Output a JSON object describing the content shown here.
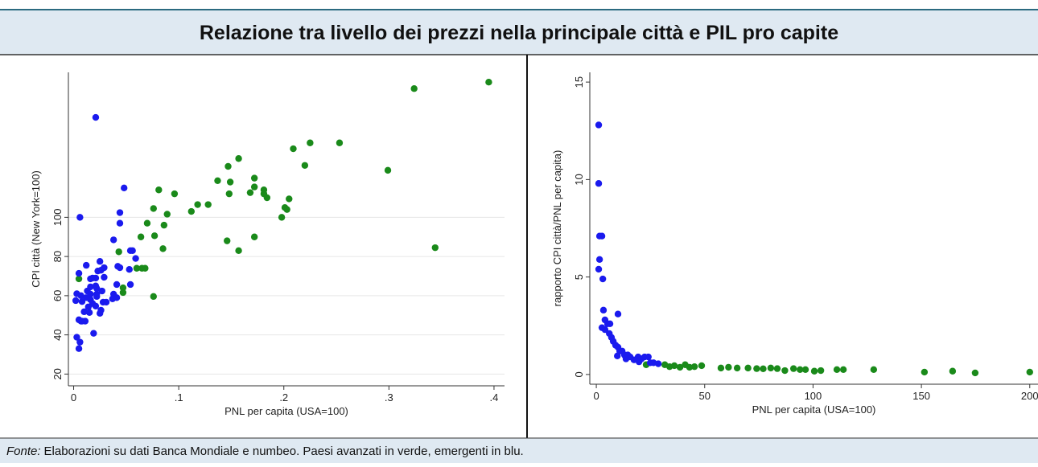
{
  "page_title": "Relazione tra livello dei prezzi nella principale città e PIL pro capite",
  "footer": {
    "source_label": "Fonte:",
    "text": "Elaborazioni su dati Banca Mondiale e numbeo. Paesi avanzati in verde, emergenti in blu."
  },
  "chart_data": [
    {
      "type": "scatter",
      "x_label": "PNL per capita (USA=100)",
      "y_label": "CPI città (New York=100)",
      "xlim": [
        -0.005,
        0.41
      ],
      "ylim": [
        14,
        174
      ],
      "xticks": [
        0,
        {
          "value": 0.1,
          "label": ".1"
        },
        {
          "value": 0.2,
          "label": ".2"
        },
        {
          "value": 0.3,
          "label": ".3"
        },
        {
          "value": 0.4,
          "label": ".4"
        }
      ],
      "yticks": [
        20,
        40,
        60,
        80,
        100
      ],
      "grid": true,
      "series": [
        {
          "color": "#1a8a1a",
          "x": [
            0.395,
            0.324,
            0.344,
            0.299,
            0.253,
            0.225,
            0.209,
            0.22,
            0.201,
            0.203,
            0.198,
            0.205,
            0.181,
            0.181,
            0.184,
            0.172,
            0.172,
            0.168,
            0.172,
            0.157,
            0.147,
            0.149,
            0.148,
            0.137,
            0.146,
            0.157,
            0.128,
            0.118,
            0.112,
            0.096,
            0.081,
            0.089,
            0.086,
            0.076,
            0.07,
            0.077,
            0.064,
            0.085,
            0.06,
            0.065,
            0.068,
            0.076,
            0.047,
            0.047,
            0.043,
            0.005
          ],
          "values": [
            169,
            165.7,
            84.5,
            124,
            138,
            138,
            135,
            126.5,
            105,
            104,
            100,
            109.4,
            114,
            112,
            110,
            120,
            115.5,
            112.6,
            90,
            130,
            126,
            118,
            112,
            118.7,
            88,
            83,
            106.5,
            106.5,
            103,
            112,
            114,
            101.6,
            96,
            104.5,
            97,
            90.6,
            90,
            84,
            74,
            74,
            74,
            59.6,
            61.6,
            64,
            82.4,
            68.6
          ]
        },
        {
          "color": "#1a1aee",
          "x": [
            0.021,
            0.048,
            0.044,
            0.044,
            0.006,
            0.038,
            0.054,
            0.056,
            0.059,
            0.042,
            0.044,
            0.053,
            0.012,
            0.025,
            0.026,
            0.029,
            0.023,
            0.005,
            0.054,
            0.041,
            0.016,
            0.018,
            0.021,
            0.029,
            0.021,
            0.016,
            0.022,
            0.013,
            0.027,
            0.003,
            0.007,
            0.016,
            0.022,
            0.012,
            0.022,
            0.038,
            0.041,
            0.037,
            0.002,
            0.008,
            0.016,
            0.028,
            0.031,
            0.018,
            0.014,
            0.021,
            0.026,
            0.01,
            0.015,
            0.025,
            0.005,
            0.007,
            0.008,
            0.011,
            0.019,
            0.003,
            0.006,
            0.005
          ],
          "values": [
            151,
            115,
            102.4,
            97,
            100,
            88.5,
            83,
            83,
            79,
            75,
            74.3,
            73.4,
            75.5,
            77.5,
            73,
            74.3,
            72.6,
            71.4,
            65.7,
            65.7,
            68.6,
            69,
            69,
            69.4,
            65,
            64.5,
            63.7,
            62.4,
            62.4,
            61,
            60,
            60.8,
            60.8,
            59,
            59.6,
            60.8,
            59,
            58.4,
            57.5,
            57,
            58,
            56.7,
            56.7,
            56,
            54.3,
            54.7,
            52.6,
            51.8,
            51.4,
            51,
            47.7,
            47,
            47,
            47,
            40.8,
            38.8,
            36.3,
            33
          ]
        }
      ]
    },
    {
      "type": "scatter",
      "x_label": "PNL per capita (USA=100)",
      "y_label": "rapporto CPI città/PNL per capita)",
      "xlim": [
        -3,
        203.8
      ],
      "ylim": [
        -0.5,
        15.5
      ],
      "xticks": [
        0,
        50,
        100,
        150,
        200
      ],
      "yticks": [
        0,
        5,
        10,
        15
      ],
      "grid": false,
      "series": [
        {
          "color": "#1a8a1a",
          "x": [
            23,
            31.6,
            33.8,
            36,
            38.6,
            41,
            43,
            45.3,
            48.6,
            57.5,
            61,
            65,
            70,
            74,
            77,
            80.5,
            83.5,
            87,
            91,
            94,
            96.5,
            100.6,
            103.6,
            111,
            114,
            128,
            151.4,
            164.4,
            174.8,
            200
          ],
          "values": [
            0.5,
            0.5,
            0.4,
            0.45,
            0.37,
            0.5,
            0.37,
            0.4,
            0.45,
            0.33,
            0.37,
            0.33,
            0.33,
            0.3,
            0.29,
            0.33,
            0.3,
            0.2,
            0.3,
            0.25,
            0.25,
            0.17,
            0.2,
            0.25,
            0.25,
            0.25,
            0.12,
            0.17,
            0.08,
            0.12
          ]
        },
        {
          "color": "#1a1aee",
          "x": [
            1.1,
            1.1,
            1.5,
            2.6,
            1.5,
            1.1,
            3,
            3.3,
            10,
            4,
            5.2,
            6.3,
            2.6,
            4,
            6,
            7,
            7.8,
            8.9,
            10,
            10.8,
            11.9,
            13,
            9.7,
            14.5,
            15.6,
            17.4,
            19.3,
            20.8,
            22.3,
            24,
            24.9,
            26.4,
            28.6,
            19.7,
            13.7
          ],
          "values": [
            12.8,
            9.8,
            7.1,
            7.1,
            5.9,
            5.4,
            4.9,
            3.3,
            3.1,
            2.8,
            2.6,
            2.6,
            2.4,
            2.3,
            2.1,
            1.9,
            1.7,
            1.5,
            1.4,
            1.2,
            1.2,
            1,
            0.95,
            1,
            0.9,
            0.75,
            0.9,
            0.8,
            0.9,
            0.9,
            0.6,
            0.6,
            0.55,
            0.65,
            0.8
          ]
        }
      ]
    }
  ]
}
